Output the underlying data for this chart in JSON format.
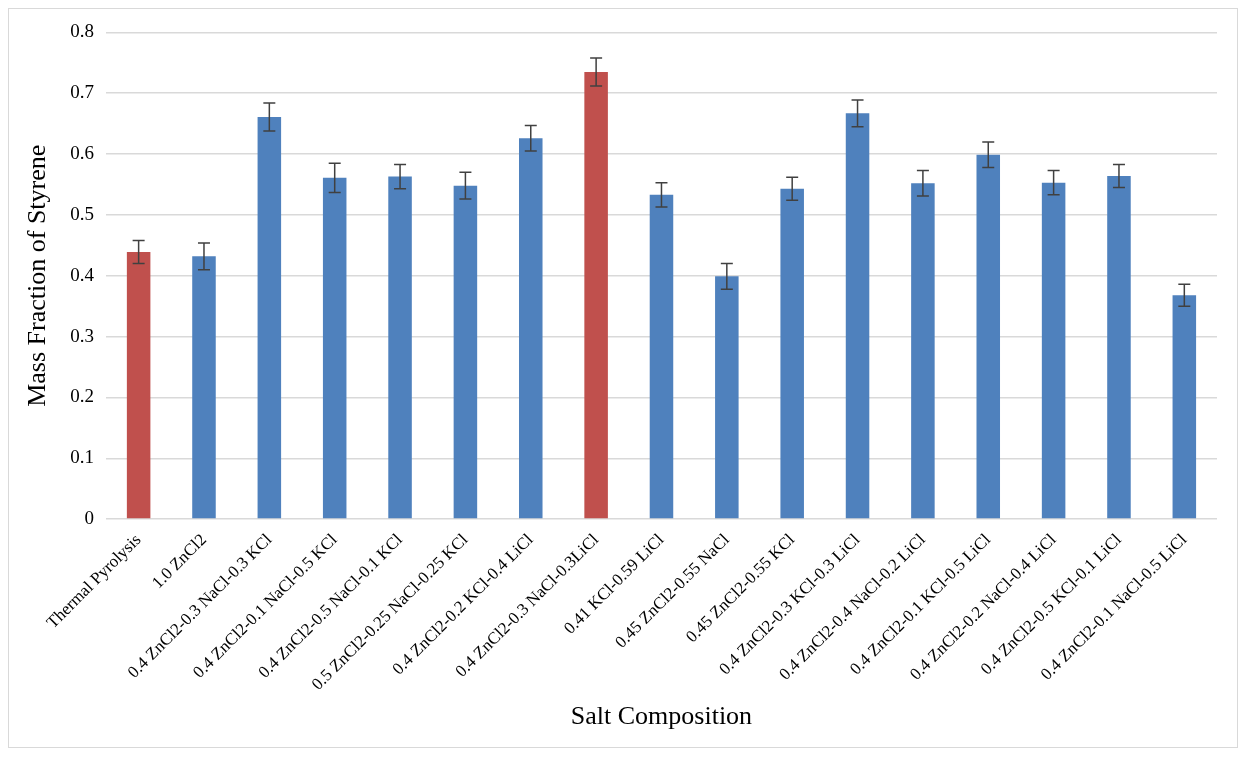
{
  "chart_data": {
    "type": "bar",
    "xlabel": "Salt Composition",
    "ylabel": "Mass Fraction of Styrene",
    "categories": [
      "Thermal Pyrolysis",
      "1.0 ZnCl2",
      "0.4 ZnCl2-0.3 NaCl-0.3 KCl",
      "0.4 ZnCl2-0.1 NaCl-0.5 KCl",
      "0.4 ZnCl2-0.5 NaCl-0.1 KCl",
      "0.5 ZnCl2-0.25 NaCl-0.25 KCl",
      "0.4 ZnCl2-0.2 KCl-0.4 LiCl",
      "0.4 ZnCl2-0.3 NaCl-0.3LiCl",
      "0.41 KCl-0.59 LiCl",
      "0.45 ZnCl2-0.55 NaCl",
      "0.45 ZnCl2-0.55 KCl",
      "0.4 ZnCl2-0.3 KCl-0.3 LiCl",
      "0.4 ZnCl2-0.4 NaCl-0.2 LiCl",
      "0.4 ZnCl2-0.1 KCl-0.5 LiCl",
      "0.4 ZnCl2-0.2 NaCl-0.4 LiCl",
      "0.4 ZnCl2-0.5 KCl-0.1 LiCl",
      "0.4 ZnCl2-0.1 NaCl-0.5 LiCl"
    ],
    "values": [
      0.439,
      0.432,
      0.661,
      0.561,
      0.563,
      0.548,
      0.626,
      0.735,
      0.533,
      0.399,
      0.543,
      0.667,
      0.552,
      0.599,
      0.553,
      0.564,
      0.368
    ],
    "errors": [
      0.019,
      0.022,
      0.023,
      0.024,
      0.02,
      0.022,
      0.021,
      0.023,
      0.02,
      0.021,
      0.019,
      0.022,
      0.021,
      0.021,
      0.02,
      0.019,
      0.018
    ],
    "colors": [
      "#c0504d",
      "#4f81bd",
      "#4f81bd",
      "#4f81bd",
      "#4f81bd",
      "#4f81bd",
      "#4f81bd",
      "#c0504d",
      "#4f81bd",
      "#4f81bd",
      "#4f81bd",
      "#4f81bd",
      "#4f81bd",
      "#4f81bd",
      "#4f81bd",
      "#4f81bd",
      "#4f81bd"
    ],
    "ylim": [
      0,
      0.8
    ],
    "yticks": [
      0,
      0.1,
      0.2,
      0.3,
      0.4,
      0.5,
      0.6,
      0.7,
      0.8
    ],
    "grid": "y",
    "legend": false
  }
}
